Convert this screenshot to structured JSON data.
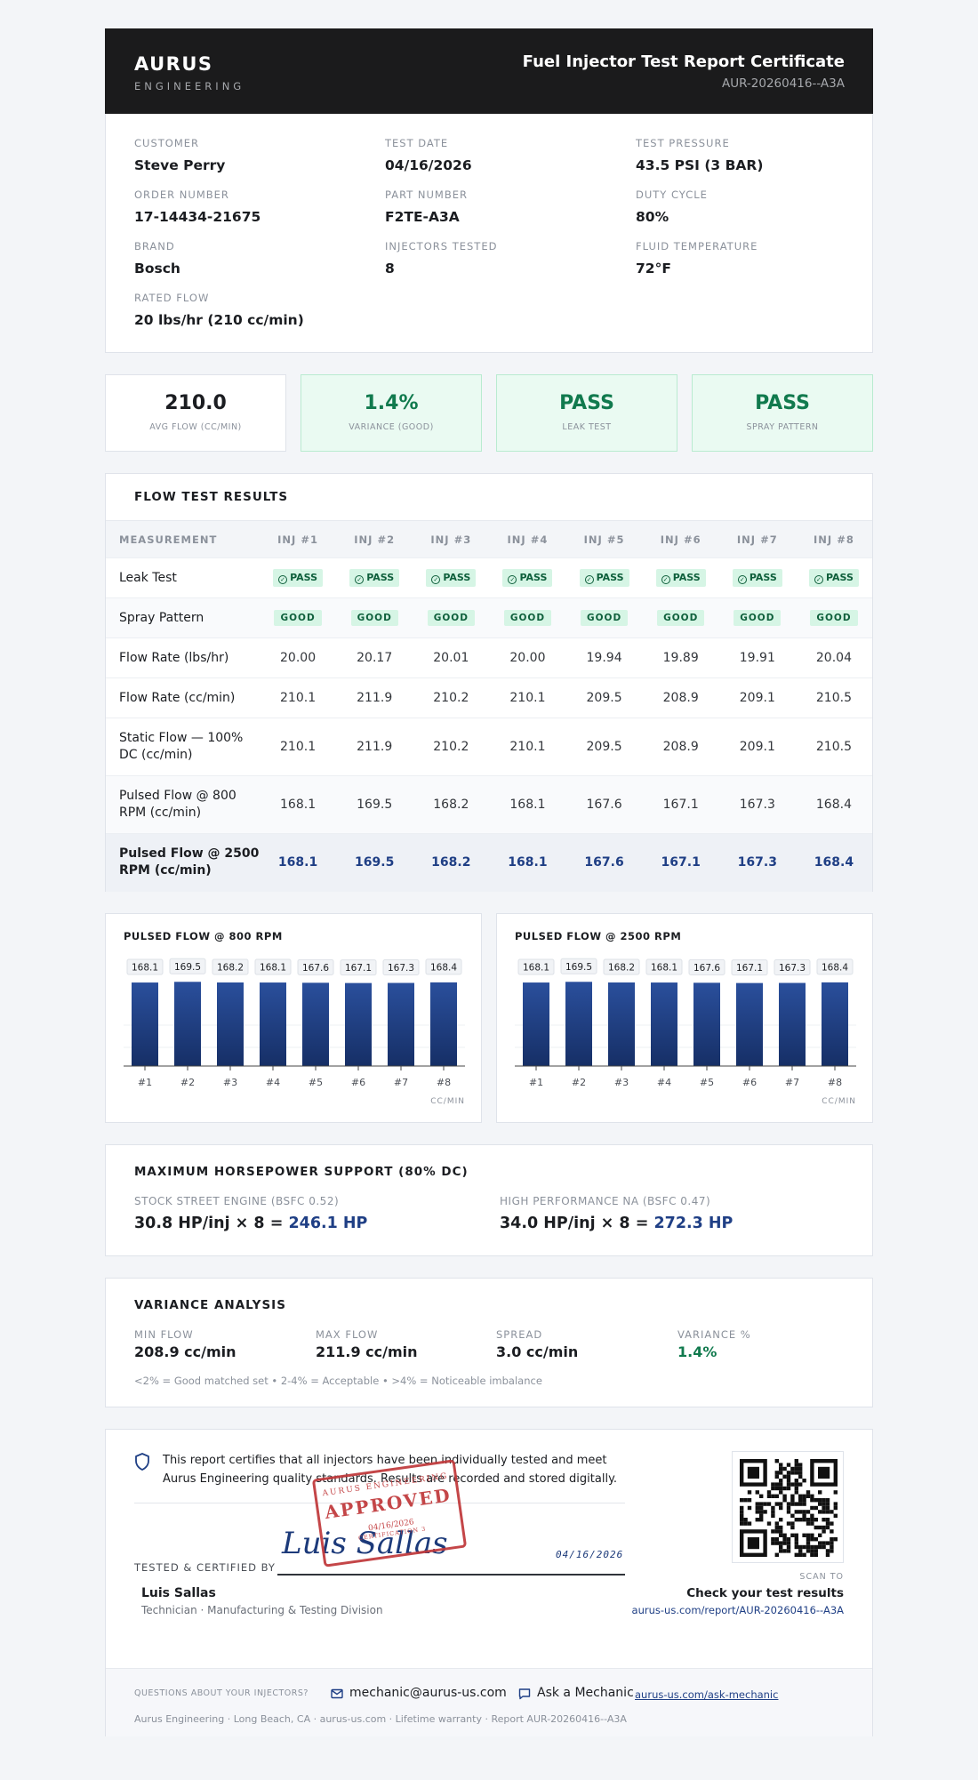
{
  "header": {
    "brand": "AURUS",
    "brand_sub": "ENGINEERING",
    "title": "Fuel Injector Test Report Certificate",
    "report_id": "AUR-20260416--A3A"
  },
  "info": {
    "customer_label": "CUSTOMER",
    "customer": "Steve Perry",
    "test_date_label": "TEST DATE",
    "test_date": "04/16/2026",
    "test_pressure_label": "TEST PRESSURE",
    "test_pressure": "43.5 PSI (3 BAR)",
    "order_label": "ORDER NUMBER",
    "order": "17-14434-21675",
    "part_label": "PART NUMBER",
    "part": "F2TE-A3A",
    "duty_label": "DUTY CYCLE",
    "duty": "80%",
    "brand_label": "BRAND",
    "brand": "Bosch",
    "tested_label": "INJECTORS TESTED",
    "tested": "8",
    "fluid_label": "FLUID TEMPERATURE",
    "fluid": "72°F",
    "rated_label": "RATED FLOW",
    "rated": "20 lbs/hr (210 cc/min)"
  },
  "stats": [
    {
      "value": "210.0",
      "label": "AVG FLOW (CC/MIN)"
    },
    {
      "value": "1.4%",
      "label": "VARIANCE (GOOD)"
    },
    {
      "value": "PASS",
      "label": "LEAK TEST"
    },
    {
      "value": "PASS",
      "label": "SPRAY PATTERN"
    }
  ],
  "flow": {
    "title": "FLOW TEST RESULTS",
    "col_measure": "MEASUREMENT",
    "cols": [
      "INJ #1",
      "INJ #2",
      "INJ #3",
      "INJ #4",
      "INJ #5",
      "INJ #6",
      "INJ #7",
      "INJ #8"
    ],
    "pass": "PASS",
    "good": "GOOD",
    "rows": {
      "leak": "Leak Test",
      "spray": "Spray Pattern",
      "lbs": {
        "label": "Flow Rate (lbs/hr)",
        "v": [
          "20.00",
          "20.17",
          "20.01",
          "20.00",
          "19.94",
          "19.89",
          "19.91",
          "20.04"
        ]
      },
      "cc": {
        "label": "Flow Rate (cc/min)",
        "v": [
          "210.1",
          "211.9",
          "210.2",
          "210.1",
          "209.5",
          "208.9",
          "209.1",
          "210.5"
        ]
      },
      "static": {
        "label": "Static Flow — 100% DC (cc/min)",
        "v": [
          "210.1",
          "211.9",
          "210.2",
          "210.1",
          "209.5",
          "208.9",
          "209.1",
          "210.5"
        ]
      },
      "p800": {
        "label": "Pulsed Flow @ 800 RPM (cc/min)",
        "v": [
          "168.1",
          "169.5",
          "168.2",
          "168.1",
          "167.6",
          "167.1",
          "167.3",
          "168.4"
        ]
      },
      "p2500": {
        "label": "Pulsed Flow @ 2500 RPM (cc/min)",
        "v": [
          "168.1",
          "169.5",
          "168.2",
          "168.1",
          "167.6",
          "167.1",
          "167.3",
          "168.4"
        ]
      }
    }
  },
  "chart_data": [
    {
      "type": "bar",
      "title": "PULSED FLOW @ 800 RPM",
      "categories": [
        "#1",
        "#2",
        "#3",
        "#4",
        "#5",
        "#6",
        "#7",
        "#8"
      ],
      "values": [
        168.1,
        169.5,
        168.2,
        168.1,
        167.6,
        167.1,
        167.3,
        168.4
      ],
      "unit": "CC/MIN",
      "color": "#1f3f85"
    },
    {
      "type": "bar",
      "title": "PULSED FLOW @ 2500 RPM",
      "categories": [
        "#1",
        "#2",
        "#3",
        "#4",
        "#5",
        "#6",
        "#7",
        "#8"
      ],
      "values": [
        168.1,
        169.5,
        168.2,
        168.1,
        167.6,
        167.1,
        167.3,
        168.4
      ],
      "unit": "CC/MIN",
      "color": "#1f3f85"
    }
  ],
  "hp": {
    "title": "MAXIMUM HORSEPOWER SUPPORT (80% DC)",
    "stock_label": "STOCK STREET ENGINE (BSFC 0.52)",
    "stock_calc": "30.8 HP/inj × 8 = ",
    "stock_hp": "246.1 HP",
    "perf_label": "HIGH PERFORMANCE NA (BSFC 0.47)",
    "perf_calc": "34.0 HP/inj × 8 = ",
    "perf_hp": "272.3 HP"
  },
  "variance": {
    "title": "VARIANCE ANALYSIS",
    "min_label": "MIN FLOW",
    "min": "208.9 cc/min",
    "max_label": "MAX FLOW",
    "max": "211.9 cc/min",
    "spread_label": "SPREAD",
    "spread": "3.0 cc/min",
    "pct_label": "VARIANCE %",
    "pct": "1.4%",
    "note": "<2% = Good matched set • 2-4% = Acceptable • >4% = Noticeable imbalance"
  },
  "cert": {
    "statement": "This report certifies that all injectors have been individually tested and meet Aurus Engineering quality standards. Results are recorded and stored digitally.",
    "tested_label": "TESTED & CERTIFIED BY",
    "signature": "Luis Sallas",
    "sig_date": "04/16/2026",
    "stamp_top": "AURUS ENGINEERING",
    "stamp_main": "APPROVED",
    "stamp_date": "04/16/2026",
    "stamp_bottom": "CERTIFICATION 3",
    "tech_name": "Luis Sallas",
    "tech_role": "Technician · Manufacturing & Testing Division",
    "scan_to": "SCAN TO",
    "check": "Check your test results",
    "url": "aurus-us.com/report/AUR-20260416--A3A"
  },
  "footer": {
    "question": "QUESTIONS ABOUT YOUR INJECTORS?",
    "email": "mechanic@aurus-us.com",
    "ask": "Ask a Mechanic",
    "ask_link": "aurus-us.com/ask-mechanic",
    "info": "Aurus Engineering · Long Beach, CA · aurus-us.com · Lifetime warranty · Report AUR-20260416--A3A"
  }
}
